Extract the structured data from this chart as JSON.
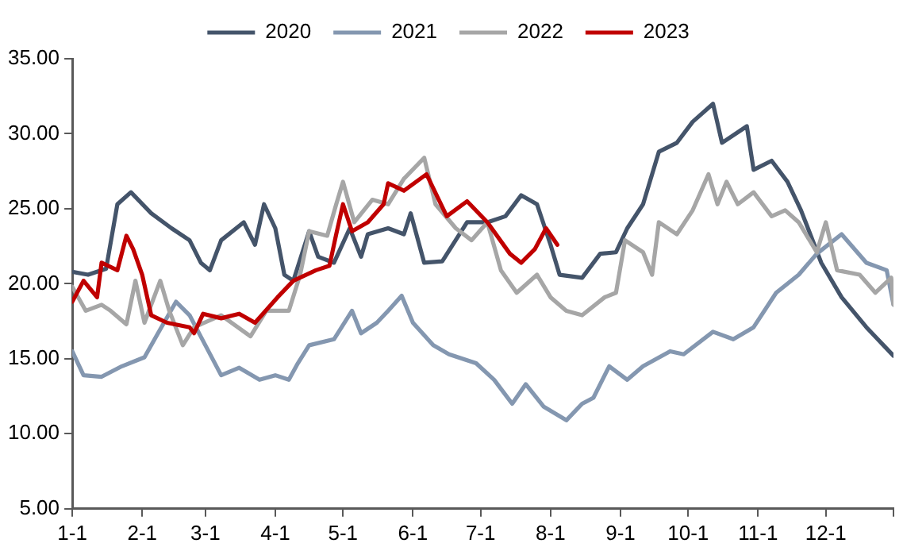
{
  "chart_data": {
    "type": "line",
    "xlim": [
      "--01-01",
      "--12-31"
    ],
    "xticks": [
      {
        "value": "--01-01",
        "label": "1-1"
      },
      {
        "value": "--02-01",
        "label": "2-1"
      },
      {
        "value": "--03-01",
        "label": "3-1"
      },
      {
        "value": "--04-01",
        "label": "4-1"
      },
      {
        "value": "--05-01",
        "label": "5-1"
      },
      {
        "value": "--06-01",
        "label": "6-1"
      },
      {
        "value": "--07-01",
        "label": "7-1"
      },
      {
        "value": "--08-01",
        "label": "8-1"
      },
      {
        "value": "--09-01",
        "label": "9-1"
      },
      {
        "value": "--10-01",
        "label": "10-1"
      },
      {
        "value": "--11-01",
        "label": "11-1"
      },
      {
        "value": "--12-01",
        "label": "12-1"
      },
      {
        "value": "--12-31",
        "label": null
      }
    ],
    "ylim": [
      5,
      35
    ],
    "yticks": [
      {
        "value": 5,
        "label": "5.00"
      },
      {
        "value": 10,
        "label": "10.00"
      },
      {
        "value": 15,
        "label": "15.00"
      },
      {
        "value": 20,
        "label": "20.00"
      },
      {
        "value": 25,
        "label": "25.00"
      },
      {
        "value": 30,
        "label": "30.00"
      },
      {
        "value": 35,
        "label": "35.00"
      }
    ],
    "grid": false,
    "legend": "top",
    "marker": "none",
    "line_style": "solid",
    "series": [
      {
        "name": "2020",
        "color": "#44546a",
        "x": [
          "--01-01",
          "--01-08",
          "--01-16",
          "--01-21",
          "--01-27",
          "--02-05",
          "--02-14",
          "--02-22",
          "--02-27",
          "--03-03",
          "--03-08",
          "--03-18",
          "--03-23",
          "--03-27",
          "--04-01",
          "--04-05",
          "--04-09",
          "--04-16",
          "--04-20",
          "--04-27",
          "--05-04",
          "--05-09",
          "--05-12",
          "--05-21",
          "--05-28",
          "--05-31",
          "--06-06",
          "--06-14",
          "--06-25",
          "--07-04",
          "--07-12",
          "--07-19",
          "--07-26",
          "--08-01",
          "--08-05",
          "--08-15",
          "--08-23",
          "--08-30",
          "--09-04",
          "--09-11",
          "--09-18",
          "--09-26",
          "--10-03",
          "--10-12",
          "--10-16",
          "--10-27",
          "--10-30",
          "--11-07",
          "--11-14",
          "--11-20",
          "--11-29",
          "--12-08",
          "--12-19",
          "--12-31"
        ],
        "values": [
          20.8,
          20.6,
          21.0,
          25.3,
          26.1,
          24.7,
          23.7,
          22.9,
          21.4,
          20.9,
          22.9,
          24.1,
          22.6,
          25.3,
          23.7,
          20.6,
          20.2,
          23.5,
          21.8,
          21.4,
          23.7,
          21.8,
          23.3,
          23.7,
          23.3,
          24.7,
          21.4,
          21.5,
          24.1,
          24.1,
          24.5,
          25.9,
          25.3,
          22.6,
          20.6,
          20.4,
          22.0,
          22.1,
          23.7,
          25.3,
          28.8,
          29.4,
          30.8,
          32.0,
          29.4,
          30.5,
          27.6,
          28.2,
          26.8,
          24.9,
          21.4,
          19.1,
          17.1,
          15.2
        ]
      },
      {
        "name": "2021",
        "color": "#8497b0",
        "x": [
          "--01-01",
          "--01-06",
          "--01-14",
          "--01-23",
          "--02-02",
          "--02-08",
          "--02-16",
          "--02-22",
          "--03-01",
          "--03-08",
          "--03-16",
          "--03-25",
          "--04-01",
          "--04-07",
          "--04-11",
          "--04-16",
          "--04-27",
          "--05-05",
          "--05-09",
          "--05-16",
          "--05-21",
          "--05-27",
          "--06-01",
          "--06-10",
          "--06-17",
          "--06-29",
          "--07-07",
          "--07-15",
          "--07-21",
          "--07-29",
          "--08-08",
          "--08-15",
          "--08-20",
          "--08-27",
          "--09-04",
          "--09-11",
          "--09-23",
          "--09-29",
          "--10-12",
          "--10-21",
          "--10-30",
          "--11-09",
          "--11-19",
          "--11-27",
          "--12-08",
          "--12-19",
          "--12-28",
          "--12-31"
        ],
        "values": [
          15.5,
          13.9,
          13.8,
          14.5,
          15.1,
          16.7,
          18.8,
          17.9,
          15.9,
          13.9,
          14.4,
          13.6,
          13.9,
          13.6,
          14.7,
          15.9,
          16.3,
          18.2,
          16.7,
          17.4,
          18.2,
          19.2,
          17.4,
          15.9,
          15.3,
          14.7,
          13.6,
          12.0,
          13.3,
          11.8,
          10.9,
          12.0,
          12.4,
          14.5,
          13.6,
          14.5,
          15.5,
          15.3,
          16.8,
          16.3,
          17.1,
          19.4,
          20.6,
          22.0,
          23.3,
          21.4,
          20.9,
          18.6
        ]
      },
      {
        "name": "2022",
        "color": "#a6a6a6",
        "x": [
          "--01-01",
          "--01-07",
          "--01-14",
          "--01-18",
          "--01-25",
          "--01-29",
          "--02-02",
          "--02-09",
          "--02-13",
          "--02-19",
          "--02-24",
          "--03-08",
          "--03-21",
          "--03-28",
          "--04-07",
          "--04-12",
          "--04-16",
          "--04-24",
          "--04-28",
          "--05-01",
          "--05-06",
          "--05-14",
          "--05-21",
          "--05-28",
          "--06-06",
          "--06-11",
          "--06-20",
          "--06-27",
          "--07-04",
          "--07-10",
          "--07-17",
          "--07-26",
          "--08-01",
          "--08-08",
          "--08-15",
          "--08-25",
          "--08-30",
          "--09-03",
          "--09-11",
          "--09-15",
          "--09-18",
          "--09-26",
          "--10-03",
          "--10-10",
          "--10-14",
          "--10-18",
          "--10-23",
          "--10-30",
          "--11-07",
          "--11-13",
          "--11-19",
          "--11-27",
          "--12-01",
          "--12-06",
          "--12-16",
          "--12-23",
          "--12-30",
          "--12-31"
        ],
        "values": [
          19.8,
          18.2,
          18.6,
          18.2,
          17.3,
          20.2,
          17.4,
          20.2,
          18.2,
          15.9,
          17.1,
          17.9,
          16.5,
          18.2,
          18.2,
          20.6,
          23.5,
          23.2,
          25.3,
          26.8,
          24.1,
          25.6,
          25.3,
          27.0,
          28.4,
          25.3,
          23.7,
          22.9,
          24.1,
          20.9,
          19.4,
          20.6,
          19.1,
          18.2,
          17.9,
          19.1,
          19.4,
          22.9,
          22.1,
          20.6,
          24.1,
          23.3,
          24.9,
          27.3,
          25.3,
          26.8,
          25.3,
          26.1,
          24.5,
          24.9,
          24.1,
          22.1,
          24.1,
          20.9,
          20.6,
          19.4,
          20.4,
          18.6
        ]
      },
      {
        "name": "2023",
        "color": "#c00000",
        "x": [
          "--01-01",
          "--01-06",
          "--01-12",
          "--01-14",
          "--01-21",
          "--01-25",
          "--01-28",
          "--02-01",
          "--02-05",
          "--02-12",
          "--02-22",
          "--02-24",
          "--02-28",
          "--03-08",
          "--03-16",
          "--03-23",
          "--04-02",
          "--04-09",
          "--04-19",
          "--04-25",
          "--04-28",
          "--05-01",
          "--05-05",
          "--05-12",
          "--05-19",
          "--05-21",
          "--05-28",
          "--06-07",
          "--06-16",
          "--06-25",
          "--07-04",
          "--07-14",
          "--07-19",
          "--07-25",
          "--07-30",
          "--08-04"
        ],
        "values": [
          18.8,
          20.2,
          19.1,
          21.4,
          20.9,
          23.2,
          22.3,
          20.6,
          17.9,
          17.4,
          17.1,
          16.7,
          18.0,
          17.7,
          18.0,
          17.4,
          19.1,
          20.2,
          20.9,
          21.2,
          23.3,
          25.3,
          23.5,
          24.1,
          25.3,
          26.7,
          26.2,
          27.3,
          24.5,
          25.5,
          24.1,
          22.0,
          21.4,
          22.3,
          23.7,
          22.6
        ]
      }
    ]
  }
}
